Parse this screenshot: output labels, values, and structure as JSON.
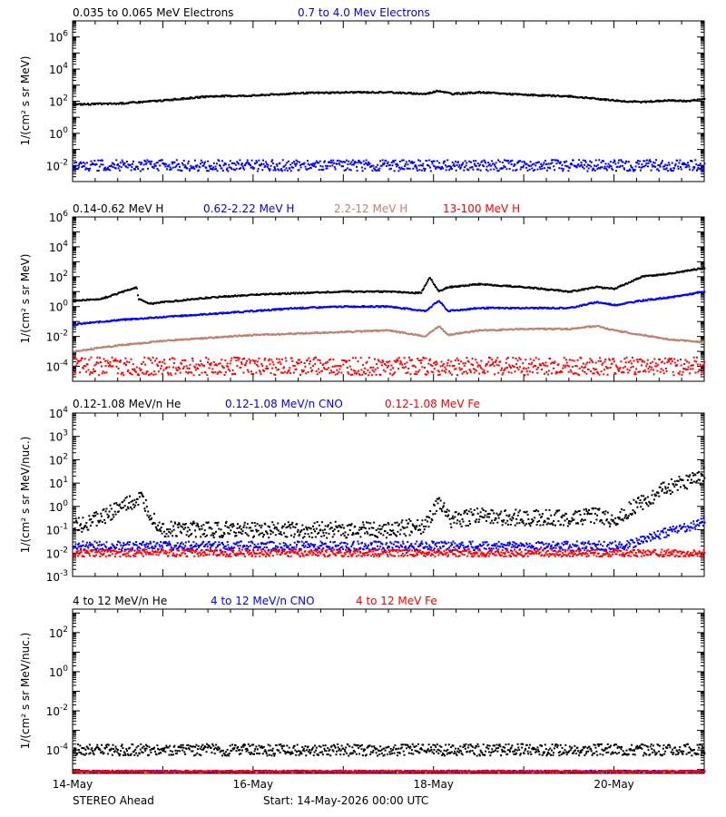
{
  "figure": {
    "spacecraft": "STEREO Ahead",
    "start_label": "Start: 14-May-2026 00:00 UTC",
    "x_ticks": [
      "14-May",
      "16-May",
      "18-May",
      "20-May"
    ],
    "x_range_days": [
      0,
      7
    ]
  },
  "chart_data": [
    {
      "type": "scatter",
      "id": "electrons",
      "ylabel": "1/(cm² s sr MeV)",
      "ylim_log10": [
        -3.0,
        7.0
      ],
      "y_tick_labels": [
        {
          "v": -2,
          "text": "10",
          "exp": "-2"
        },
        {
          "v": 0,
          "text": "10",
          "exp": "0"
        },
        {
          "v": 2,
          "text": "10",
          "exp": "2"
        },
        {
          "v": 4,
          "text": "10",
          "exp": "4"
        },
        {
          "v": 6,
          "text": "10",
          "exp": "6"
        }
      ],
      "series": [
        {
          "name": "0.035 to 0.065 MeV Electrons",
          "color": "#000000",
          "x": [
            0,
            0.5,
            1.0,
            1.5,
            2.0,
            2.5,
            3.0,
            3.5,
            3.9,
            4.05,
            4.2,
            4.5,
            5.0,
            5.5,
            5.9,
            6.1,
            6.3,
            6.6,
            6.8,
            7.0
          ],
          "log10_y": [
            1.8,
            1.85,
            2.05,
            2.3,
            2.35,
            2.5,
            2.55,
            2.55,
            2.45,
            2.65,
            2.45,
            2.55,
            2.4,
            2.3,
            2.1,
            2.0,
            1.95,
            2.05,
            2.0,
            2.15
          ]
        },
        {
          "name": "0.7 to 4.0 Mev Electrons",
          "color": "#0000ff",
          "x": [
            0,
            7.0
          ],
          "log10_y": [
            -2.0,
            -2.0
          ],
          "scatter": 0.35
        }
      ]
    },
    {
      "type": "scatter",
      "id": "protons",
      "ylabel": "1/(cm² s sr MeV)",
      "ylim_log10": [
        -5.0,
        6.0
      ],
      "y_tick_labels": [
        {
          "v": -4,
          "text": "10",
          "exp": "-4"
        },
        {
          "v": -2,
          "text": "10",
          "exp": "-2"
        },
        {
          "v": 0,
          "text": "10",
          "exp": "0"
        },
        {
          "v": 2,
          "text": "10",
          "exp": "2"
        },
        {
          "v": 4,
          "text": "10",
          "exp": "4"
        },
        {
          "v": 6,
          "text": "10",
          "exp": "6"
        }
      ],
      "series": [
        {
          "name": "0.14-0.62 MeV H",
          "color": "#000000",
          "x": [
            0,
            0.3,
            0.5,
            0.7,
            0.72,
            0.85,
            1.0,
            1.5,
            2.0,
            2.5,
            3.0,
            3.5,
            3.85,
            3.95,
            4.05,
            4.15,
            4.5,
            5.0,
            5.5,
            5.8,
            6.0,
            6.3,
            6.6,
            7.0
          ],
          "log10_y": [
            0.4,
            0.5,
            0.9,
            1.3,
            0.5,
            0.2,
            0.3,
            0.6,
            0.8,
            0.9,
            1.0,
            1.0,
            0.9,
            1.95,
            1.0,
            1.3,
            1.5,
            1.3,
            1.0,
            1.3,
            1.2,
            2.0,
            2.2,
            2.6
          ]
        },
        {
          "name": "0.62-2.22 MeV H",
          "color": "#0000ff",
          "x": [
            0,
            0.5,
            1.0,
            1.5,
            2.0,
            2.5,
            3.0,
            3.5,
            3.9,
            4.05,
            4.15,
            4.5,
            5.0,
            5.5,
            5.8,
            6.0,
            6.3,
            6.6,
            7.0
          ],
          "log10_y": [
            -1.2,
            -0.9,
            -0.7,
            -0.5,
            -0.3,
            -0.1,
            0.0,
            0.0,
            -0.3,
            0.4,
            -0.3,
            -0.1,
            -0.1,
            -0.1,
            0.3,
            0.1,
            0.4,
            0.6,
            1.0
          ]
        },
        {
          "name": "2.2-12 MeV H",
          "color": "#c08070",
          "x": [
            0,
            0.5,
            1.0,
            1.5,
            2.0,
            2.5,
            3.0,
            3.5,
            3.9,
            4.05,
            4.15,
            4.5,
            5.0,
            5.5,
            5.8,
            6.0,
            6.3,
            6.6,
            7.0
          ],
          "log10_y": [
            -3.0,
            -2.6,
            -2.3,
            -2.1,
            -1.9,
            -1.8,
            -1.7,
            -1.6,
            -2.0,
            -1.3,
            -1.9,
            -1.6,
            -1.5,
            -1.5,
            -1.3,
            -1.6,
            -1.9,
            -2.2,
            -2.4
          ]
        },
        {
          "name": "13-100 MeV H",
          "color": "#ff0000",
          "x": [
            0,
            7.0
          ],
          "log10_y": [
            -4.0,
            -4.0
          ],
          "scatter": 0.6
        }
      ]
    },
    {
      "type": "scatter",
      "id": "heavy_low",
      "ylabel": "1/(cm² s sr MeV/nuc.)",
      "ylim_log10": [
        -3.0,
        4.0
      ],
      "y_tick_labels": [
        {
          "v": -3,
          "text": "10",
          "exp": "-3"
        },
        {
          "v": -2,
          "text": "10",
          "exp": "-2"
        },
        {
          "v": -1,
          "text": "10",
          "exp": "-1"
        },
        {
          "v": 0,
          "text": "10",
          "exp": "0"
        },
        {
          "v": 1,
          "text": "10",
          "exp": "1"
        },
        {
          "v": 2,
          "text": "10",
          "exp": "2"
        },
        {
          "v": 3,
          "text": "10",
          "exp": "3"
        },
        {
          "v": 4,
          "text": "10",
          "exp": "4"
        }
      ],
      "series": [
        {
          "name": "0.12-1.08 MeV/n He",
          "color": "#000000",
          "x": [
            0,
            0.3,
            0.55,
            0.75,
            0.9,
            1.0,
            1.5,
            2.0,
            2.5,
            3.0,
            3.5,
            3.9,
            4.05,
            4.2,
            4.5,
            5.0,
            5.5,
            5.8,
            6.0,
            6.3,
            6.6,
            7.0
          ],
          "log10_y": [
            -0.9,
            -0.5,
            0.0,
            0.3,
            -0.6,
            -1.0,
            -1.0,
            -1.0,
            -1.0,
            -1.0,
            -1.0,
            -0.8,
            0.1,
            -0.6,
            -0.4,
            -0.5,
            -0.5,
            -0.4,
            -0.6,
            0.2,
            0.8,
            1.35
          ],
          "scatter": 0.35
        },
        {
          "name": "0.12-1.08 MeV/n CNO",
          "color": "#0000ff",
          "x": [
            0,
            6.0,
            6.2,
            6.5,
            6.8,
            7.0
          ],
          "log10_y": [
            -1.7,
            -1.7,
            -1.6,
            -1.2,
            -0.9,
            -0.65
          ],
          "scatter": 0.2
        },
        {
          "name": "0.12-1.08 MeV Fe",
          "color": "#ff0000",
          "x": [
            0,
            7.0
          ],
          "log10_y": [
            -2.0,
            -2.0
          ],
          "scatter": 0.15
        }
      ]
    },
    {
      "type": "scatter",
      "id": "heavy_high",
      "ylabel": "1/(cm² s sr MeV/nuc.)",
      "ylim_log10": [
        -5.2,
        3.2
      ],
      "y_tick_labels": [
        {
          "v": -4,
          "text": "10",
          "exp": "-4"
        },
        {
          "v": -2,
          "text": "10",
          "exp": "-2"
        },
        {
          "v": 0,
          "text": "10",
          "exp": "0"
        },
        {
          "v": 2,
          "text": "10",
          "exp": "2"
        }
      ],
      "series": [
        {
          "name": "4 to 12 MeV/n He",
          "color": "#000000",
          "x": [
            0,
            7.0
          ],
          "log10_y": [
            -4.0,
            -4.0
          ],
          "scatter": 0.3
        },
        {
          "name": "4 to 12 MeV/n CNO",
          "color": "#0000ff",
          "x": [
            0,
            7.0
          ],
          "log10_y": [
            -5.1,
            -5.1
          ],
          "scatter": 0.05
        },
        {
          "name": "4 to 12 MeV Fe",
          "color": "#ff0000",
          "x": [
            0,
            7.0
          ],
          "log10_y": [
            -5.1,
            -5.1
          ],
          "scatter": 0.05
        }
      ]
    }
  ]
}
